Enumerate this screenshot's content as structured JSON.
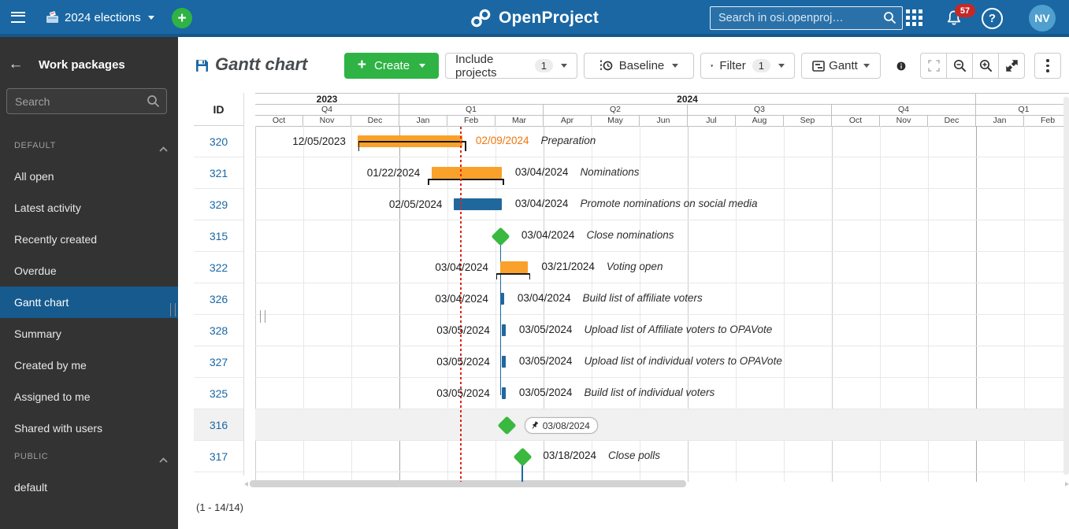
{
  "colors": {
    "header_blue": "#1A67A3",
    "header_blue_dark": "#15578C",
    "sidebar_bg": "#333333",
    "sidebar_active": "#175A8E",
    "green": "#2FB344",
    "bar_orange": "#F9A12B",
    "bar_blue": "#20689B",
    "milestone_green": "#3AB83F",
    "today_red": "#E0261C",
    "late_orange": "#F0760A",
    "link_blue": "#1A67A3",
    "badge_red": "#C62828"
  },
  "topbar": {
    "project": "2024 elections",
    "logo_text": "OpenProject",
    "search_placeholder": "Search in osi.openproj…",
    "notifications": "57",
    "avatar_initials": "NV"
  },
  "sidebar": {
    "title": "Work packages",
    "search_placeholder": "Search",
    "sections": [
      {
        "label": "DEFAULT",
        "items": [
          {
            "label": "All open"
          },
          {
            "label": "Latest activity"
          },
          {
            "label": "Recently created"
          },
          {
            "label": "Overdue"
          },
          {
            "label": "Gantt chart",
            "active": true
          },
          {
            "label": "Summary"
          },
          {
            "label": "Created by me"
          },
          {
            "label": "Assigned to me"
          },
          {
            "label": "Shared with users"
          }
        ]
      },
      {
        "label": "PUBLIC",
        "items": [
          {
            "label": "default"
          }
        ]
      }
    ]
  },
  "toolbar": {
    "title": "Gantt chart",
    "create_label": "Create",
    "include_projects_label": "Include projects",
    "include_projects_count": "1",
    "baseline_label": "Baseline",
    "filter_label": "Filter",
    "filter_count": "1",
    "gantt_label": "Gantt"
  },
  "gantt": {
    "id_header": "ID",
    "pagination": "(1 - 14/14)",
    "timeline": {
      "years": [
        {
          "label": "2023",
          "span": 3
        },
        {
          "label": "2024",
          "span": 12
        },
        {
          "label": "",
          "span": 2
        }
      ],
      "quarters": [
        {
          "label": "Q4",
          "span": 3
        },
        {
          "label": "Q1",
          "span": 3
        },
        {
          "label": "Q2",
          "span": 3
        },
        {
          "label": "Q3",
          "span": 3
        },
        {
          "label": "Q4",
          "span": 3
        },
        {
          "label": "Q1",
          "span": 2
        }
      ],
      "months": [
        "Oct",
        "Nov",
        "Dec",
        "Jan",
        "Feb",
        "Mar",
        "Apr",
        "May",
        "Jun",
        "Jul",
        "Aug",
        "Sep",
        "Oct",
        "Nov",
        "Dec",
        "Jan",
        "Feb"
      ],
      "today": "02/08/2024"
    },
    "rows": [
      {
        "id": "320",
        "type": "bar",
        "color": "orange",
        "start": "12/05/2023",
        "finish": "02/09/2024",
        "finish_late": true,
        "name": "Preparation",
        "baseline": "through"
      },
      {
        "id": "321",
        "type": "bar",
        "color": "orange",
        "start": "01/22/2024",
        "finish": "03/04/2024",
        "name": "Nominations",
        "baseline": "under"
      },
      {
        "id": "329",
        "type": "bar",
        "color": "blue",
        "start": "02/05/2024",
        "finish": "03/04/2024",
        "name": "Promote nominations on social media"
      },
      {
        "id": "315",
        "type": "milestone",
        "date": "03/04/2024",
        "finish": "03/04/2024",
        "name": "Close nominations"
      },
      {
        "id": "322",
        "type": "bar",
        "color": "orange",
        "start": "03/04/2024",
        "finish": "03/21/2024",
        "name": "Voting open",
        "baseline": "under"
      },
      {
        "id": "326",
        "type": "bar",
        "color": "blue",
        "start": "03/04/2024",
        "finish": "03/04/2024",
        "name": "Build list of affiliate voters"
      },
      {
        "id": "328",
        "type": "bar",
        "color": "blue",
        "start": "03/05/2024",
        "finish": "03/05/2024",
        "name": "Upload list of Affiliate voters to OPAVote"
      },
      {
        "id": "327",
        "type": "bar",
        "color": "blue",
        "start": "03/05/2024",
        "finish": "03/05/2024",
        "name": "Upload list of individual voters to OPAVote"
      },
      {
        "id": "325",
        "type": "bar",
        "color": "blue",
        "start": "03/05/2024",
        "finish": "03/05/2024",
        "name": "Build list of individual voters"
      },
      {
        "id": "316",
        "type": "milestone",
        "date": "03/08/2024",
        "chip": "03/08/2024",
        "highlight": true
      },
      {
        "id": "317",
        "type": "milestone",
        "date": "03/18/2024",
        "finish": "03/18/2024",
        "name": "Close polls"
      }
    ],
    "relations": [
      {
        "date": "03/04/2024",
        "from_row": 3,
        "to_row": 8
      },
      {
        "date": "03/18/2024",
        "from_row": 10,
        "to_row": "end"
      }
    ]
  }
}
